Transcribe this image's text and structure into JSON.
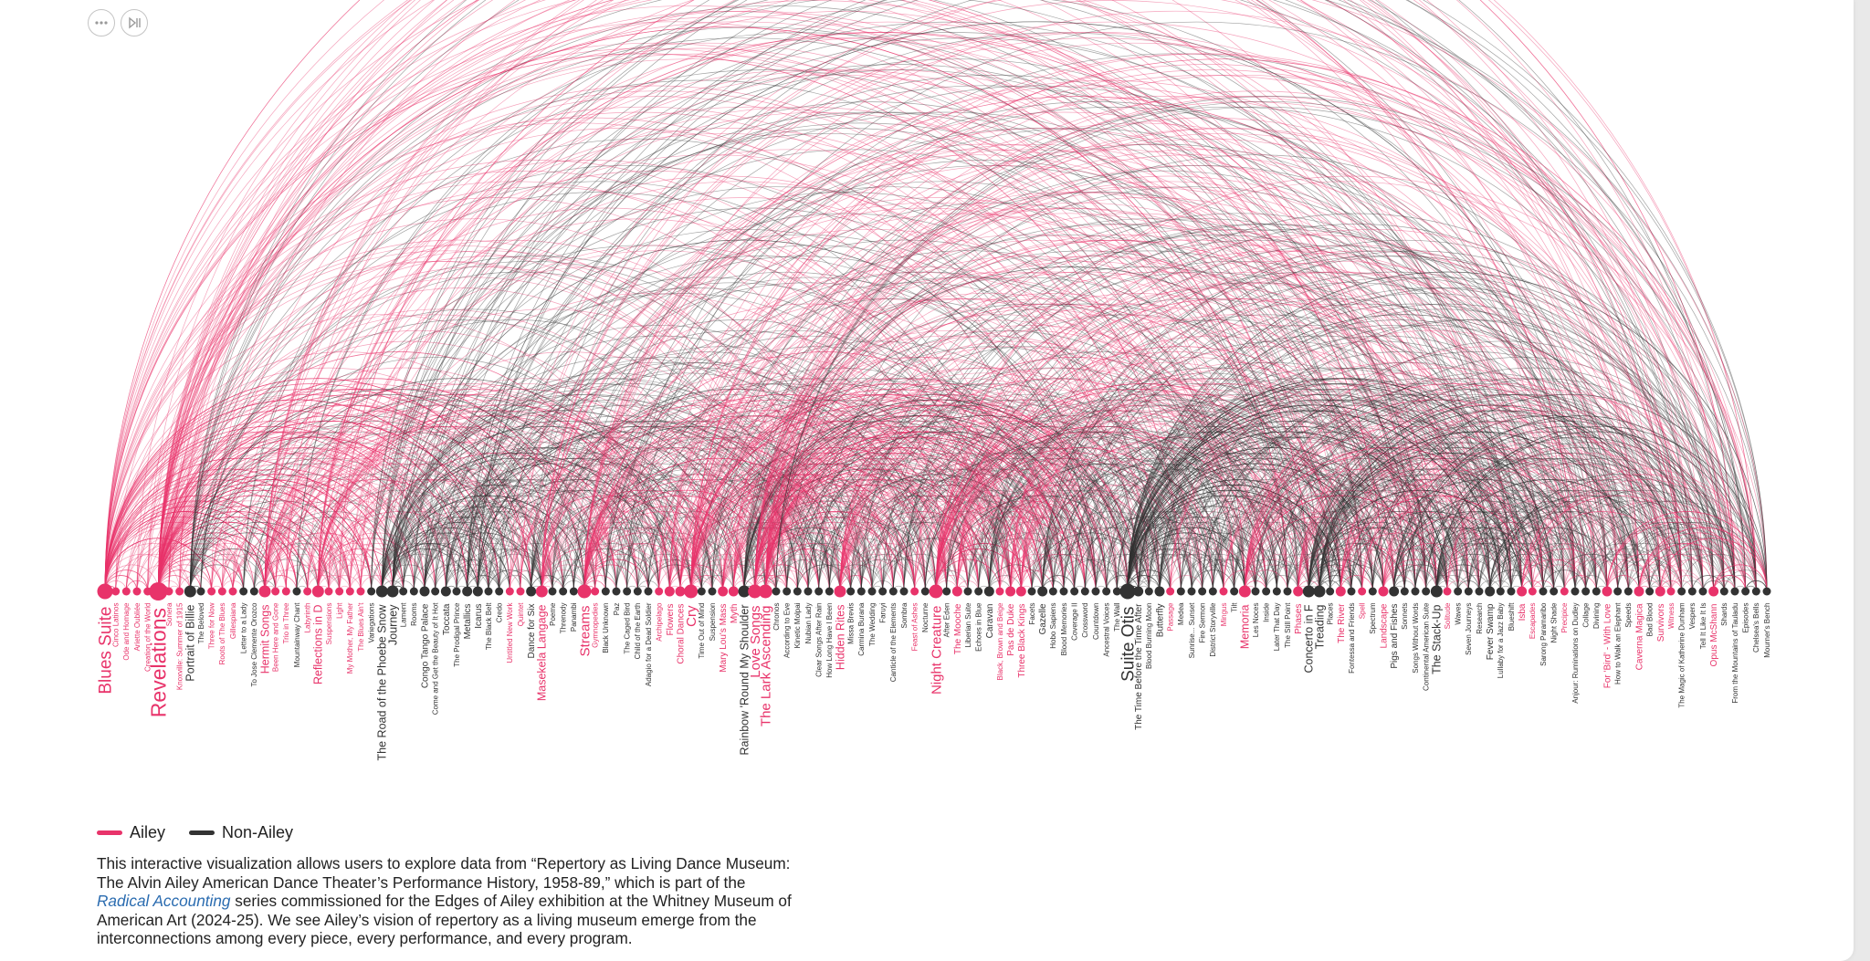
{
  "toolbar": {
    "more_icon": "ellipsis-icon",
    "play_icon": "play-pause-icon"
  },
  "colors": {
    "ailey": "#e8336a",
    "non_ailey": "#333333"
  },
  "legend": {
    "ailey_label": "Ailey",
    "non_ailey_label": "Non-Ailey"
  },
  "description": {
    "text_before": "This interactive visualization allows users to explore data from “Repertory as Living Dance Museum: The Alvin Ailey American Dance Theater’s Performance History, 1958-89,” which is part of the ",
    "link_text": "Radical Accounting",
    "text_after": " series commissioned for the Edges of Ailey exhibition at the Whitney Museum of American Art (2024-25). We see Ailey’s vision of repertory as a living museum emerge from the interconnections among every piece, every performance, and every program."
  },
  "works": [
    {
      "name": "Blues Suite",
      "ailey": true,
      "w": 5
    },
    {
      "name": "Cinco Latinos",
      "ailey": true,
      "w": 1
    },
    {
      "name": "Ode and Homage",
      "ailey": true,
      "w": 1
    },
    {
      "name": "Ariette Oubliée",
      "ailey": true,
      "w": 1
    },
    {
      "name": "Creation of the World",
      "ailey": true,
      "w": 1
    },
    {
      "name": "Revelations",
      "ailey": true,
      "w": 6
    },
    {
      "name": "Sonera",
      "ailey": true,
      "w": 1
    },
    {
      "name": "Knoxville: Summer of 1915",
      "ailey": true,
      "w": 1
    },
    {
      "name": "Portrait of Billie",
      "ailey": false,
      "w": 3
    },
    {
      "name": "The Beloved",
      "ailey": false,
      "w": 1
    },
    {
      "name": "Three for Now",
      "ailey": true,
      "w": 1
    },
    {
      "name": "Roots of The Blues",
      "ailey": true,
      "w": 1
    },
    {
      "name": "Gillespiana",
      "ailey": true,
      "w": 1
    },
    {
      "name": "Letter to a Lady",
      "ailey": false,
      "w": 1
    },
    {
      "name": "To Jose Clemente Orozco",
      "ailey": false,
      "w": 1
    },
    {
      "name": "Hermit Songs",
      "ailey": true,
      "w": 3
    },
    {
      "name": "Been Here and Gone",
      "ailey": true,
      "w": 1
    },
    {
      "name": "Trio in Three",
      "ailey": true,
      "w": 1
    },
    {
      "name": "Mountainway Chant",
      "ailey": false,
      "w": 1
    },
    {
      "name": "Labyrinth",
      "ailey": true,
      "w": 1
    },
    {
      "name": "Reflections in D",
      "ailey": true,
      "w": 3
    },
    {
      "name": "Suspensions",
      "ailey": true,
      "w": 1
    },
    {
      "name": "Light",
      "ailey": true,
      "w": 1
    },
    {
      "name": "My Mother, My Father",
      "ailey": true,
      "w": 1
    },
    {
      "name": "The Blues Ain't",
      "ailey": true,
      "w": 1
    },
    {
      "name": "Variegations",
      "ailey": false,
      "w": 1
    },
    {
      "name": "The Road of the Phoebe Snow",
      "ailey": false,
      "w": 3
    },
    {
      "name": "Journey",
      "ailey": false,
      "w": 3
    },
    {
      "name": "Lament",
      "ailey": false,
      "w": 1
    },
    {
      "name": "Rooms",
      "ailey": false,
      "w": 1
    },
    {
      "name": "Congo Tango Palace",
      "ailey": false,
      "w": 2
    },
    {
      "name": "Come and Get the Beauty of It Hot",
      "ailey": false,
      "w": 1
    },
    {
      "name": "Toccata",
      "ailey": false,
      "w": 2
    },
    {
      "name": "The Prodigal Prince",
      "ailey": false,
      "w": 1
    },
    {
      "name": "Metallics",
      "ailey": false,
      "w": 2
    },
    {
      "name": "Icarus",
      "ailey": false,
      "w": 2
    },
    {
      "name": "The Black Belt",
      "ailey": false,
      "w": 1
    },
    {
      "name": "Credo",
      "ailey": false,
      "w": 1
    },
    {
      "name": "Untitled New Work",
      "ailey": true,
      "w": 1
    },
    {
      "name": "Quintet",
      "ailey": true,
      "w": 1
    },
    {
      "name": "Dance for Six",
      "ailey": false,
      "w": 2
    },
    {
      "name": "Masekela Langage",
      "ailey": true,
      "w": 3
    },
    {
      "name": "Poeme",
      "ailey": false,
      "w": 1
    },
    {
      "name": "Threnody",
      "ailey": false,
      "w": 1
    },
    {
      "name": "Panambi",
      "ailey": false,
      "w": 1
    },
    {
      "name": "Streams",
      "ailey": true,
      "w": 4
    },
    {
      "name": "Gymnopedies",
      "ailey": true,
      "w": 1
    },
    {
      "name": "Black Unknown",
      "ailey": false,
      "w": 1
    },
    {
      "name": "Paz",
      "ailey": false,
      "w": 1
    },
    {
      "name": "The Caged Bird",
      "ailey": false,
      "w": 1
    },
    {
      "name": "Child of the Earth",
      "ailey": false,
      "w": 1
    },
    {
      "name": "Adagio for a Dead Soldier",
      "ailey": false,
      "w": 1
    },
    {
      "name": "Archipelago",
      "ailey": true,
      "w": 1
    },
    {
      "name": "Flowers",
      "ailey": true,
      "w": 2
    },
    {
      "name": "Choral Dances",
      "ailey": true,
      "w": 2
    },
    {
      "name": "Cry",
      "ailey": true,
      "w": 4
    },
    {
      "name": "Time Out of Mind",
      "ailey": false,
      "w": 1
    },
    {
      "name": "Suspension",
      "ailey": false,
      "w": 1
    },
    {
      "name": "Mary Lou's Mass",
      "ailey": true,
      "w": 2
    },
    {
      "name": "Myth",
      "ailey": true,
      "w": 2
    },
    {
      "name": "Rainbow 'Round My Shoulder",
      "ailey": false,
      "w": 3
    },
    {
      "name": "Love Songs",
      "ailey": true,
      "w": 4
    },
    {
      "name": "The Lark Ascending",
      "ailey": true,
      "w": 4
    },
    {
      "name": "Chronos",
      "ailey": false,
      "w": 1
    },
    {
      "name": "According to Eve",
      "ailey": false,
      "w": 1
    },
    {
      "name": "Kinetic Molpai",
      "ailey": false,
      "w": 1
    },
    {
      "name": "Nubian Lady",
      "ailey": false,
      "w": 1
    },
    {
      "name": "Clear Songs After Rain",
      "ailey": false,
      "w": 1
    },
    {
      "name": "How Long Have I Been",
      "ailey": false,
      "w": 1
    },
    {
      "name": "Hidden Rites",
      "ailey": true,
      "w": 3
    },
    {
      "name": "Missa Brevis",
      "ailey": false,
      "w": 1
    },
    {
      "name": "Carmina Burana",
      "ailey": false,
      "w": 1
    },
    {
      "name": "The Wedding",
      "ailey": false,
      "w": 1
    },
    {
      "name": "Faruyi",
      "ailey": false,
      "w": 1
    },
    {
      "name": "Canticle of the Elements",
      "ailey": false,
      "w": 1
    },
    {
      "name": "Sombra",
      "ailey": false,
      "w": 1
    },
    {
      "name": "Feast of Ashes",
      "ailey": true,
      "w": 1
    },
    {
      "name": "Nocturne",
      "ailey": false,
      "w": 1
    },
    {
      "name": "Night Creature",
      "ailey": true,
      "w": 4
    },
    {
      "name": "After Eden",
      "ailey": false,
      "w": 1
    },
    {
      "name": "The Mooche",
      "ailey": true,
      "w": 2
    },
    {
      "name": "Liberian Suite",
      "ailey": false,
      "w": 1
    },
    {
      "name": "Echoes in Blue",
      "ailey": false,
      "w": 1
    },
    {
      "name": "Caravan",
      "ailey": false,
      "w": 2
    },
    {
      "name": "Black, Brown and Beige",
      "ailey": true,
      "w": 1
    },
    {
      "name": "Pas de Duke",
      "ailey": true,
      "w": 2
    },
    {
      "name": "Three Black Kings",
      "ailey": true,
      "w": 2
    },
    {
      "name": "Facets",
      "ailey": false,
      "w": 1
    },
    {
      "name": "Gazelle",
      "ailey": false,
      "w": 2
    },
    {
      "name": "Hobo Sapiens",
      "ailey": false,
      "w": 1
    },
    {
      "name": "Blood Memories",
      "ailey": false,
      "w": 1
    },
    {
      "name": "Coverage II",
      "ailey": false,
      "w": 1
    },
    {
      "name": "Crossword",
      "ailey": false,
      "w": 1
    },
    {
      "name": "Countdown",
      "ailey": false,
      "w": 1
    },
    {
      "name": "Ancestral Voices",
      "ailey": false,
      "w": 1
    },
    {
      "name": "The Wall",
      "ailey": false,
      "w": 1
    },
    {
      "name": "Suite Otis",
      "ailey": false,
      "w": 5
    },
    {
      "name": "The Time Before the Time After",
      "ailey": false,
      "w": 2
    },
    {
      "name": "Blood Burning Moon",
      "ailey": false,
      "w": 1
    },
    {
      "name": "Butterfly",
      "ailey": false,
      "w": 2
    },
    {
      "name": "Passage",
      "ailey": true,
      "w": 1
    },
    {
      "name": "Medea",
      "ailey": false,
      "w": 1
    },
    {
      "name": "Sunrise... Sunset",
      "ailey": false,
      "w": 1
    },
    {
      "name": "Fire Sermon",
      "ailey": false,
      "w": 1
    },
    {
      "name": "District Storyville",
      "ailey": false,
      "w": 1
    },
    {
      "name": "Mingus",
      "ailey": true,
      "w": 1
    },
    {
      "name": "Tilt",
      "ailey": false,
      "w": 1
    },
    {
      "name": "Memoria",
      "ailey": true,
      "w": 3
    },
    {
      "name": "Les Noces",
      "ailey": false,
      "w": 1
    },
    {
      "name": "Inside",
      "ailey": false,
      "w": 1
    },
    {
      "name": "Later That Day",
      "ailey": false,
      "w": 1
    },
    {
      "name": "The Still Point",
      "ailey": false,
      "w": 1
    },
    {
      "name": "Phases",
      "ailey": true,
      "w": 2
    },
    {
      "name": "Concerto in F",
      "ailey": false,
      "w": 3
    },
    {
      "name": "Treading",
      "ailey": false,
      "w": 3
    },
    {
      "name": "Places",
      "ailey": false,
      "w": 1
    },
    {
      "name": "The River",
      "ailey": true,
      "w": 2
    },
    {
      "name": "Fontessa and Friends",
      "ailey": false,
      "w": 1
    },
    {
      "name": "Spell",
      "ailey": true,
      "w": 1
    },
    {
      "name": "Spectrum",
      "ailey": false,
      "w": 1
    },
    {
      "name": "Landscape",
      "ailey": true,
      "w": 2
    },
    {
      "name": "Pigs and Fishes",
      "ailey": false,
      "w": 2
    },
    {
      "name": "Sonnets",
      "ailey": false,
      "w": 1
    },
    {
      "name": "Songs Without Words",
      "ailey": false,
      "w": 1
    },
    {
      "name": "Continental American Suite",
      "ailey": false,
      "w": 1
    },
    {
      "name": "The Stack-Up",
      "ailey": false,
      "w": 3
    },
    {
      "name": "Solitude",
      "ailey": true,
      "w": 1
    },
    {
      "name": "Waves",
      "ailey": false,
      "w": 1
    },
    {
      "name": "Seven Journeys",
      "ailey": false,
      "w": 1
    },
    {
      "name": "Research",
      "ailey": false,
      "w": 1
    },
    {
      "name": "Fever Swamp",
      "ailey": false,
      "w": 2
    },
    {
      "name": "Lullaby for a Jazz Baby",
      "ailey": false,
      "w": 1
    },
    {
      "name": "Blueshift",
      "ailey": false,
      "w": 1
    },
    {
      "name": "Isba",
      "ailey": true,
      "w": 2
    },
    {
      "name": "Escapades",
      "ailey": true,
      "w": 1
    },
    {
      "name": "Sarong Paramaribo",
      "ailey": false,
      "w": 1
    },
    {
      "name": "Night Shade",
      "ailey": false,
      "w": 1
    },
    {
      "name": "Precipice",
      "ailey": true,
      "w": 1
    },
    {
      "name": "Anjour: Ruminations on Dudley",
      "ailey": false,
      "w": 1
    },
    {
      "name": "Collage",
      "ailey": false,
      "w": 1
    },
    {
      "name": "Divining",
      "ailey": false,
      "w": 1
    },
    {
      "name": "For 'Bird' - With Love",
      "ailey": true,
      "w": 2
    },
    {
      "name": "How to Walk an Elephant",
      "ailey": false,
      "w": 1
    },
    {
      "name": "Speeds",
      "ailey": false,
      "w": 1
    },
    {
      "name": "Caverna Magica",
      "ailey": true,
      "w": 2
    },
    {
      "name": "Bad Blood",
      "ailey": false,
      "w": 1
    },
    {
      "name": "Survivors",
      "ailey": true,
      "w": 2
    },
    {
      "name": "Witness",
      "ailey": true,
      "w": 1
    },
    {
      "name": "The Magic of Katherine Dunham",
      "ailey": false,
      "w": 1
    },
    {
      "name": "Vespers",
      "ailey": false,
      "w": 1
    },
    {
      "name": "Tell It Like It Is",
      "ailey": false,
      "w": 1
    },
    {
      "name": "Opus McShann",
      "ailey": true,
      "w": 2
    },
    {
      "name": "Shards",
      "ailey": false,
      "w": 1
    },
    {
      "name": "From the Mountains of Tauladu",
      "ailey": false,
      "w": 1
    },
    {
      "name": "Episodes",
      "ailey": false,
      "w": 1
    },
    {
      "name": "Chelsea's Bells",
      "ailey": false,
      "w": 1
    },
    {
      "name": "Mourner's Bench",
      "ailey": false,
      "w": 1
    }
  ]
}
